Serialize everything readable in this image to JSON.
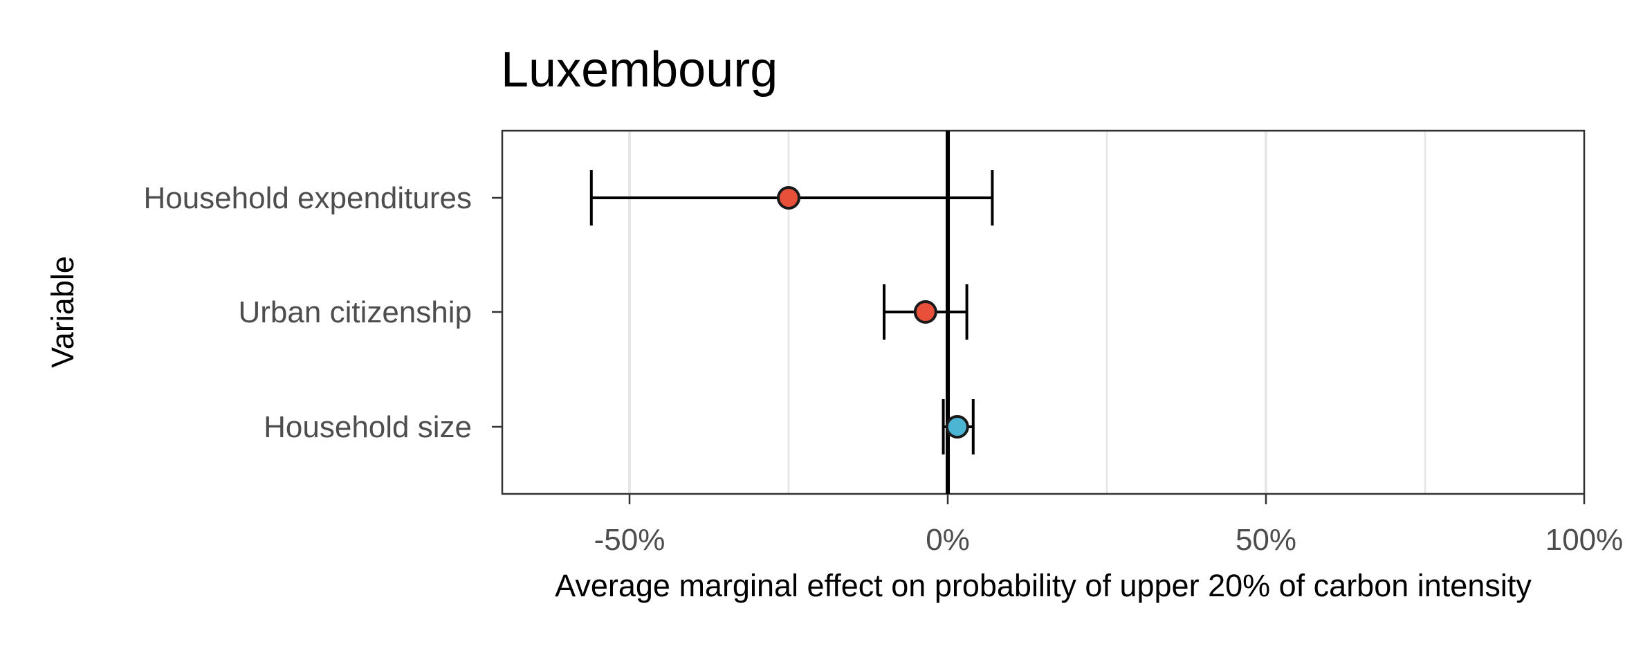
{
  "chart_data": {
    "type": "errorbar",
    "title": "Luxembourg",
    "xlabel": "Average marginal effect on probability of upper 20% of carbon intensity",
    "ylabel": "Variable",
    "xlim": [
      -70,
      100
    ],
    "x_ticks": [
      -50,
      0,
      50,
      100
    ],
    "x_tick_labels": [
      "-50%",
      "0%",
      "50%",
      "100%"
    ],
    "reference_line": 0,
    "grid": true,
    "categories": [
      "Household expenditures",
      "Urban citizenship",
      "Household size"
    ],
    "points": [
      {
        "label": "Household expenditures",
        "estimate": -25,
        "ci_low": -56,
        "ci_high": 7,
        "color": "#e8503a"
      },
      {
        "label": "Urban citizenship",
        "estimate": -3.5,
        "ci_low": -10,
        "ci_high": 3,
        "color": "#e8503a"
      },
      {
        "label": "Household size",
        "estimate": 1.5,
        "ci_low": -0.7,
        "ci_high": 4,
        "color": "#4cb5d3"
      }
    ]
  }
}
